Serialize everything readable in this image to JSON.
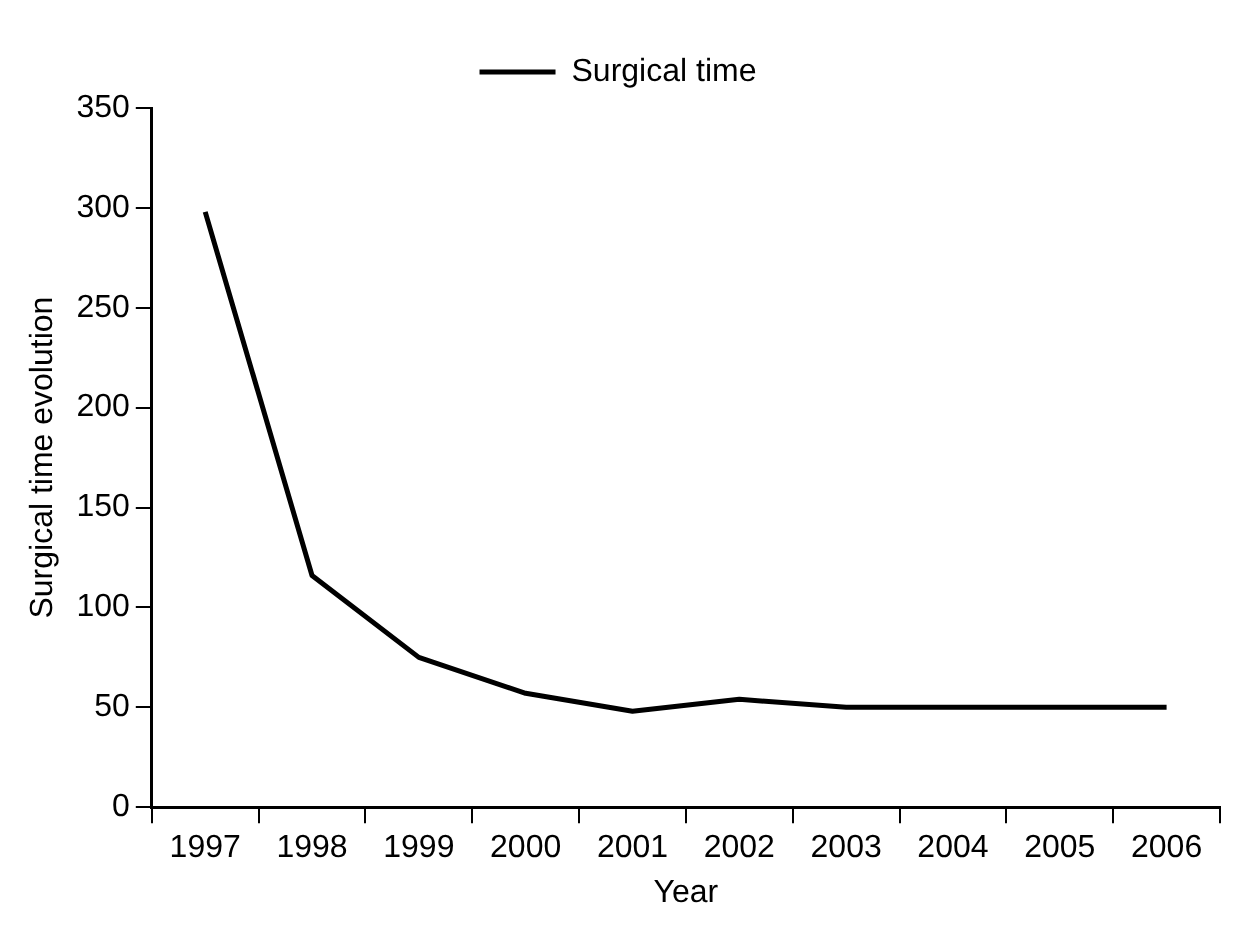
{
  "chart_data": {
    "type": "line",
    "xlabel": "Year",
    "ylabel": "Surgical time evolution",
    "categories": [
      "1997",
      "1998",
      "1999",
      "2000",
      "2001",
      "2002",
      "2003",
      "2004",
      "2005",
      "2006"
    ],
    "series": [
      {
        "name": "Surgical time",
        "color": "#000000",
        "values": [
          298,
          116,
          75,
          57,
          48,
          54,
          50,
          50,
          50,
          50
        ]
      }
    ],
    "ylim": [
      0,
      350
    ],
    "yticks": [
      0,
      50,
      100,
      150,
      200,
      250,
      300,
      350
    ],
    "grid": false,
    "legend": "top",
    "marker": "none",
    "line_style": "solid"
  }
}
